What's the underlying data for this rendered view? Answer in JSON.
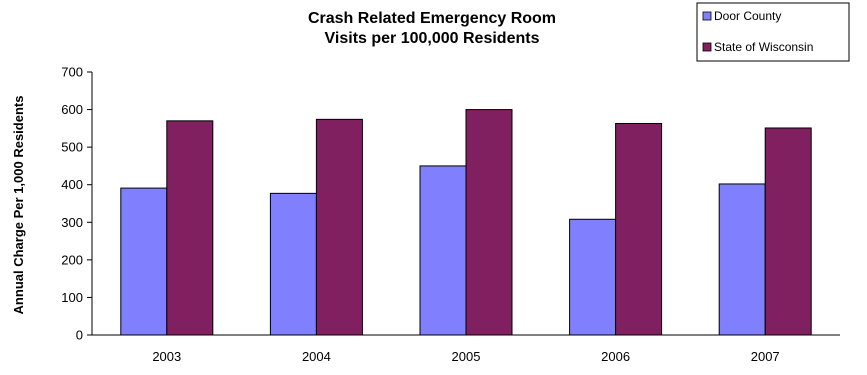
{
  "chart_data": {
    "type": "bar",
    "title_line1": "Crash Related Emergency Room",
    "title_line2": "Visits per 100,000 Residents",
    "xlabel": "",
    "ylabel": "Annual Charge Per 1,000 Residents",
    "ylim": [
      0,
      700
    ],
    "yticks": [
      "0",
      "100",
      "200",
      "300",
      "400",
      "500",
      "600",
      "700"
    ],
    "categories": [
      "2003",
      "2004",
      "2005",
      "2006",
      "2007"
    ],
    "series": [
      {
        "name": "Door County",
        "color": "#8080ff",
        "values": [
          391,
          377,
          450,
          308,
          402
        ]
      },
      {
        "name": "State of Wisconsin",
        "color": "#802060",
        "values": [
          570,
          574,
          600,
          563,
          551
        ]
      }
    ],
    "grid": false,
    "legend_position": "top-right"
  }
}
